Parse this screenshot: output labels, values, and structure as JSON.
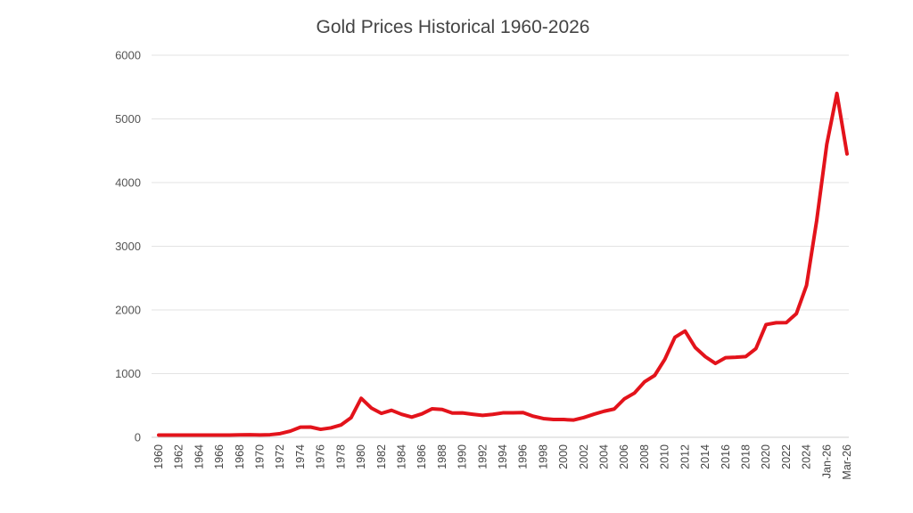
{
  "chart_data": {
    "type": "line",
    "title": "Gold Prices Historical 1960-2026",
    "xlabel": "",
    "ylabel": "",
    "ylim": [
      0,
      6000
    ],
    "yticks": [
      "0",
      "1000",
      "2000",
      "3000",
      "4000",
      "5000",
      "6000"
    ],
    "grid": true,
    "legend": "none",
    "line_color": "#e3131b",
    "x": [
      "1960",
      "1961",
      "1962",
      "1963",
      "1964",
      "1965",
      "1966",
      "1967",
      "1968",
      "1969",
      "1970",
      "1971",
      "1972",
      "1973",
      "1974",
      "1975",
      "1976",
      "1977",
      "1978",
      "1979",
      "1980",
      "1981",
      "1982",
      "1983",
      "1984",
      "1985",
      "1986",
      "1987",
      "1988",
      "1989",
      "1990",
      "1991",
      "1992",
      "1993",
      "1994",
      "1995",
      "1996",
      "1997",
      "1998",
      "1999",
      "2000",
      "2001",
      "2002",
      "2003",
      "2004",
      "2005",
      "2006",
      "2007",
      "2008",
      "2009",
      "2010",
      "2011",
      "2012",
      "2013",
      "2014",
      "2015",
      "2016",
      "2017",
      "2018",
      "2019",
      "2020",
      "2021",
      "2022",
      "2023",
      "2024",
      "2025",
      "Jan-26",
      "Feb-26",
      "Mar-26"
    ],
    "xtick_labels": [
      "1960",
      "1962",
      "1964",
      "1966",
      "1968",
      "1970",
      "1972",
      "1974",
      "1976",
      "1978",
      "1980",
      "1982",
      "1984",
      "1986",
      "1988",
      "1990",
      "1992",
      "1994",
      "1996",
      "1998",
      "2000",
      "2002",
      "2004",
      "2006",
      "2008",
      "2010",
      "2012",
      "2014",
      "2016",
      "2018",
      "2020",
      "2022",
      "2024",
      "Jan-26",
      "Mar-26"
    ],
    "series": [
      {
        "values": [
          35,
          35,
          35,
          35,
          35,
          35,
          35,
          35,
          39,
          41,
          36,
          41,
          58,
          97,
          159,
          161,
          125,
          148,
          193,
          307,
          612,
          460,
          376,
          424,
          361,
          317,
          368,
          447,
          437,
          381,
          383,
          362,
          344,
          360,
          384,
          384,
          388,
          331,
          294,
          279,
          279,
          271,
          310,
          363,
          409,
          444,
          603,
          695,
          872,
          972,
          1224,
          1571,
          1669,
          1411,
          1266,
          1160,
          1250,
          1257,
          1268,
          1393,
          1770,
          1799,
          1800,
          1943,
          2386,
          3400,
          4600,
          5400,
          4450
        ]
      }
    ]
  }
}
